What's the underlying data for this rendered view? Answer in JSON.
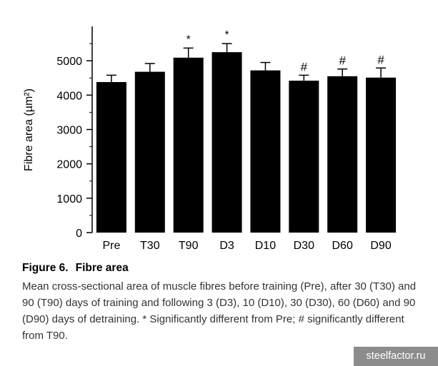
{
  "chart_data": {
    "type": "bar",
    "categories": [
      "Pre",
      "T30",
      "T90",
      "D3",
      "D10",
      "D30",
      "D60",
      "D90"
    ],
    "values": [
      4380,
      4680,
      5090,
      5250,
      4720,
      4420,
      4550,
      4510
    ],
    "errors": [
      200,
      240,
      280,
      250,
      230,
      160,
      210,
      280
    ],
    "annotations": [
      "",
      "",
      "*",
      "*",
      "",
      "#",
      "#",
      "#"
    ],
    "ylabel": "Fibre area (µm²)",
    "xlabel": "",
    "ylim": [
      0,
      6000
    ],
    "yticks": [
      0,
      1000,
      2000,
      3000,
      4000,
      5000
    ],
    "grid": false,
    "bar_color": "#000000"
  },
  "caption": {
    "figure_label": "Figure 6.",
    "title": "Fibre area",
    "description": "Mean cross-sectional area of muscle fibres before training (Pre), after 30 (T30) and 90 (T90) days of training and following 3 (D3), 10 (D10), 30 (D30), 60 (D60) and 90 (D90) days of detraining. * Significantly different from Pre; # significantly different from T90."
  },
  "watermark": "steelfactor.ru"
}
